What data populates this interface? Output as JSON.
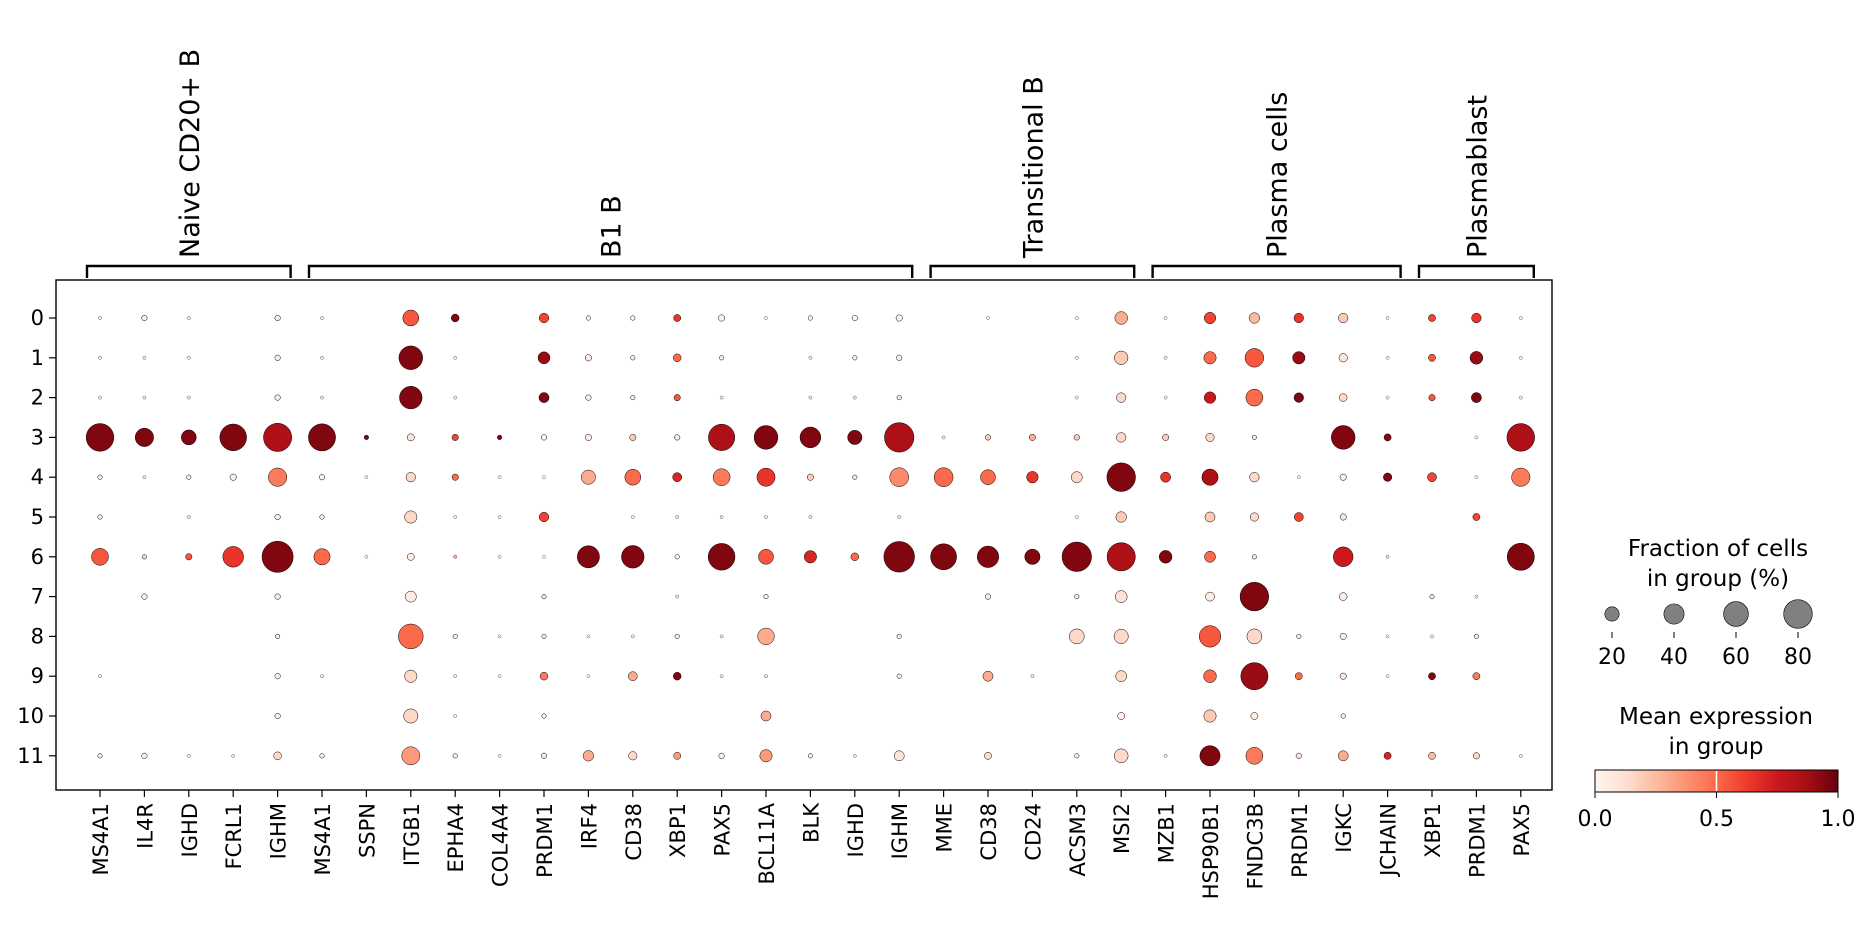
{
  "chart_data": {
    "type": "dotplot",
    "groups": [
      {
        "label": "Naive CD20+ B",
        "genes": [
          "MS4A1",
          "IL4R",
          "IGHD",
          "FCRL1",
          "IGHM"
        ]
      },
      {
        "label": "B1 B",
        "genes": [
          "MS4A1",
          "SSPN",
          "ITGB1",
          "EPHA4",
          "COL4A4",
          "PRDM1",
          "IRF4",
          "CD38",
          "XBP1",
          "PAX5",
          "BCL11A",
          "BLK",
          "IGHD",
          "IGHM"
        ]
      },
      {
        "label": "Transitional B",
        "genes": [
          "MME",
          "CD38",
          "CD24",
          "ACSM3",
          "MSI2"
        ]
      },
      {
        "label": "Plasma cells",
        "genes": [
          "MZB1",
          "HSP90B1",
          "FNDC3B",
          "PRDM1",
          "IGKC",
          "JCHAIN"
        ]
      },
      {
        "label": "Plasmablast",
        "genes": [
          "XBP1",
          "PRDM1",
          "PAX5"
        ]
      }
    ],
    "rows": [
      "0",
      "1",
      "2",
      "3",
      "4",
      "5",
      "6",
      "7",
      "8",
      "9",
      "10",
      "11"
    ],
    "fraction_pct": [
      [
        1,
        3,
        1,
        0,
        3,
        1,
        0,
        25,
        6,
        0,
        9,
        2,
        2,
        5,
        4,
        1,
        2,
        3,
        4,
        0,
        1,
        0,
        1,
        16,
        1,
        13,
        11,
        9,
        9,
        1,
        5,
        9,
        1
      ],
      [
        1,
        1,
        1,
        0,
        3,
        1,
        0,
        55,
        1,
        0,
        14,
        4,
        2,
        6,
        2,
        0,
        1,
        2,
        3,
        0,
        0,
        0,
        1,
        18,
        1,
        15,
        34,
        15,
        7,
        1,
        5,
        16,
        1
      ],
      [
        1,
        1,
        1,
        0,
        3,
        1,
        0,
        50,
        1,
        0,
        10,
        3,
        2,
        4,
        1,
        0,
        1,
        1,
        2,
        0,
        0,
        0,
        1,
        9,
        1,
        13,
        28,
        9,
        6,
        1,
        4,
        10,
        1
      ],
      [
        75,
        33,
        22,
        70,
        78,
        72,
        2,
        5,
        4,
        2,
        3,
        4,
        4,
        3,
        68,
        55,
        42,
        20,
        85,
        1,
        3,
        4,
        3,
        9,
        4,
        7,
        2,
        0,
        55,
        5,
        0,
        1,
        75
      ],
      [
        2,
        1,
        2,
        4,
        33,
        3,
        1,
        9,
        4,
        1,
        1,
        20,
        25,
        8,
        28,
        32,
        4,
        2,
        35,
        35,
        22,
        13,
        12,
        80,
        10,
        26,
        9,
        1,
        4,
        7,
        8,
        1,
        33
      ],
      [
        2,
        0,
        1,
        0,
        3,
        2,
        0,
        15,
        1,
        1,
        9,
        0,
        1,
        1,
        1,
        1,
        1,
        0,
        1,
        0,
        0,
        0,
        1,
        11,
        0,
        10,
        7,
        8,
        4,
        0,
        0,
        5,
        0
      ],
      [
        28,
        2,
        4,
        42,
        95,
        26,
        1,
        5,
        1,
        1,
        1,
        48,
        50,
        2,
        70,
        22,
        15,
        6,
        92,
        66,
        45,
        23,
        85,
        78,
        16,
        12,
        2,
        0,
        38,
        1,
        0,
        0,
        72
      ],
      [
        0,
        3,
        0,
        0,
        3,
        0,
        0,
        12,
        0,
        0,
        2,
        0,
        0,
        1,
        0,
        2,
        0,
        0,
        0,
        0,
        3,
        0,
        2,
        14,
        0,
        8,
        80,
        0,
        6,
        0,
        2,
        1,
        0
      ],
      [
        0,
        0,
        0,
        0,
        2,
        0,
        0,
        60,
        2,
        1,
        2,
        1,
        1,
        2,
        1,
        27,
        0,
        0,
        2,
        0,
        0,
        0,
        22,
        20,
        0,
        45,
        22,
        2,
        4,
        1,
        1,
        2,
        0
      ],
      [
        1,
        0,
        0,
        0,
        3,
        1,
        0,
        15,
        1,
        1,
        6,
        1,
        8,
        6,
        1,
        1,
        0,
        0,
        2,
        0,
        10,
        1,
        0,
        12,
        0,
        16,
        72,
        5,
        4,
        1,
        5,
        5,
        0
      ],
      [
        0,
        0,
        0,
        0,
        3,
        0,
        0,
        20,
        1,
        0,
        2,
        0,
        0,
        0,
        0,
        10,
        0,
        0,
        0,
        0,
        0,
        0,
        0,
        5,
        0,
        15,
        5,
        0,
        2,
        0,
        0,
        0,
        0
      ],
      [
        2,
        3,
        1,
        1,
        6,
        2,
        0,
        32,
        2,
        1,
        3,
        11,
        7,
        5,
        3,
        15,
        2,
        1,
        10,
        0,
        5,
        0,
        2,
        19,
        1,
        40,
        28,
        3,
        10,
        5,
        5,
        4,
        1
      ]
    ],
    "mean_expression": [
      [
        0.05,
        0.05,
        0.05,
        0.0,
        0.05,
        0.05,
        0.0,
        0.55,
        0.95,
        0.0,
        0.6,
        0.0,
        0.0,
        0.65,
        0.0,
        0.0,
        0.0,
        0.0,
        0.0,
        0.0,
        0.0,
        0.0,
        0.0,
        0.3,
        0.0,
        0.6,
        0.25,
        0.65,
        0.2,
        0.0,
        0.6,
        0.65,
        0.0
      ],
      [
        0.05,
        0.05,
        0.05,
        0.0,
        0.05,
        0.05,
        0.0,
        0.95,
        0.05,
        0.0,
        0.9,
        0.05,
        0.05,
        0.5,
        0.05,
        0.0,
        0.05,
        0.05,
        0.05,
        0.0,
        0.0,
        0.0,
        0.0,
        0.2,
        0.0,
        0.5,
        0.55,
        0.9,
        0.1,
        0.0,
        0.55,
        0.9,
        0.0
      ],
      [
        0.05,
        0.05,
        0.05,
        0.0,
        0.05,
        0.05,
        0.0,
        0.95,
        0.05,
        0.0,
        0.95,
        0.05,
        0.05,
        0.55,
        0.05,
        0.0,
        0.05,
        0.05,
        0.05,
        0.0,
        0.0,
        0.0,
        0.0,
        0.15,
        0.0,
        0.75,
        0.5,
        0.95,
        0.15,
        0.0,
        0.55,
        0.95,
        0.0
      ],
      [
        0.95,
        0.95,
        0.95,
        0.95,
        0.85,
        0.95,
        0.95,
        0.1,
        0.6,
        0.95,
        0.0,
        0.05,
        0.2,
        0.1,
        0.85,
        0.95,
        0.95,
        0.95,
        0.85,
        0.05,
        0.2,
        0.3,
        0.2,
        0.15,
        0.2,
        0.15,
        0.1,
        0.0,
        0.95,
        0.95,
        0.0,
        0.0,
        0.85
      ],
      [
        0.05,
        0.05,
        0.05,
        0.05,
        0.45,
        0.05,
        0.0,
        0.15,
        0.5,
        0.0,
        0.0,
        0.3,
        0.5,
        0.7,
        0.45,
        0.65,
        0.2,
        0.1,
        0.4,
        0.5,
        0.5,
        0.65,
        0.15,
        0.95,
        0.65,
        0.85,
        0.15,
        0.0,
        0.05,
        0.95,
        0.6,
        0.0,
        0.45
      ],
      [
        0.05,
        0.0,
        0.05,
        0.0,
        0.05,
        0.05,
        0.0,
        0.15,
        0.05,
        0.0,
        0.6,
        0.0,
        0.0,
        0.05,
        0.05,
        0.05,
        0.05,
        0.0,
        0.05,
        0.0,
        0.0,
        0.0,
        0.0,
        0.2,
        0.0,
        0.2,
        0.15,
        0.6,
        0.1,
        0.0,
        0.0,
        0.6,
        0.0
      ],
      [
        0.55,
        0.15,
        0.55,
        0.65,
        0.95,
        0.5,
        0.0,
        0.05,
        0.3,
        0.0,
        0.0,
        0.95,
        0.95,
        0.0,
        0.95,
        0.55,
        0.7,
        0.5,
        0.95,
        0.95,
        0.95,
        0.95,
        0.95,
        0.85,
        0.95,
        0.5,
        0.05,
        0.0,
        0.75,
        0.1,
        0.0,
        0.0,
        0.95
      ],
      [
        0.0,
        0.05,
        0.0,
        0.0,
        0.05,
        0.0,
        0.0,
        0.05,
        0.0,
        0.0,
        0.05,
        0.0,
        0.0,
        0.05,
        0.0,
        0.05,
        0.0,
        0.0,
        0.0,
        0.0,
        0.05,
        0.0,
        0.05,
        0.1,
        0.0,
        0.05,
        0.95,
        0.0,
        0.05,
        0.0,
        0.05,
        0.05,
        0.0
      ],
      [
        0.0,
        0.0,
        0.0,
        0.0,
        0.05,
        0.0,
        0.0,
        0.5,
        0.05,
        0.0,
        0.05,
        0.0,
        0.05,
        0.05,
        0.05,
        0.3,
        0.0,
        0.0,
        0.05,
        0.0,
        0.0,
        0.0,
        0.15,
        0.15,
        0.0,
        0.55,
        0.15,
        0.05,
        0.05,
        0.0,
        0.05,
        0.05,
        0.0
      ],
      [
        0.05,
        0.0,
        0.0,
        0.0,
        0.05,
        0.05,
        0.0,
        0.15,
        0.05,
        0.0,
        0.45,
        0.0,
        0.3,
        0.95,
        0.05,
        0.1,
        0.0,
        0.0,
        0.05,
        0.0,
        0.3,
        0.05,
        0.0,
        0.15,
        0.0,
        0.5,
        0.9,
        0.5,
        0.1,
        0.0,
        0.95,
        0.45,
        0.0
      ],
      [
        0.0,
        0.0,
        0.0,
        0.0,
        0.05,
        0.0,
        0.0,
        0.15,
        0.0,
        0.0,
        0.05,
        0.0,
        0.0,
        0.0,
        0.0,
        0.3,
        0.0,
        0.0,
        0.0,
        0.0,
        0.0,
        0.0,
        0.0,
        0.05,
        0.0,
        0.2,
        0.05,
        0.0,
        0.05,
        0.0,
        0.0,
        0.0,
        0.0
      ],
      [
        0.05,
        0.05,
        0.05,
        0.05,
        0.15,
        0.05,
        0.0,
        0.35,
        0.05,
        0.0,
        0.1,
        0.3,
        0.15,
        0.35,
        0.05,
        0.35,
        0.05,
        0.05,
        0.1,
        0.0,
        0.15,
        0.0,
        0.05,
        0.15,
        0.05,
        0.95,
        0.45,
        0.1,
        0.3,
        0.7,
        0.25,
        0.15,
        0.05
      ]
    ],
    "size_legend": {
      "title_lines": [
        "Fraction of cells",
        "in group (%)"
      ],
      "values": [
        20,
        40,
        60,
        80
      ]
    },
    "color_legend": {
      "title_lines": [
        "Mean expression",
        "in group"
      ],
      "ticks": [
        0.0,
        0.5,
        1.0
      ],
      "tick_labels": [
        "0.0",
        "0.5",
        "1.0"
      ],
      "colormap": "Reds"
    },
    "colors": {
      "dot_edge": "#000000",
      "legend_dot": "#808080",
      "frame": "#000000"
    }
  }
}
